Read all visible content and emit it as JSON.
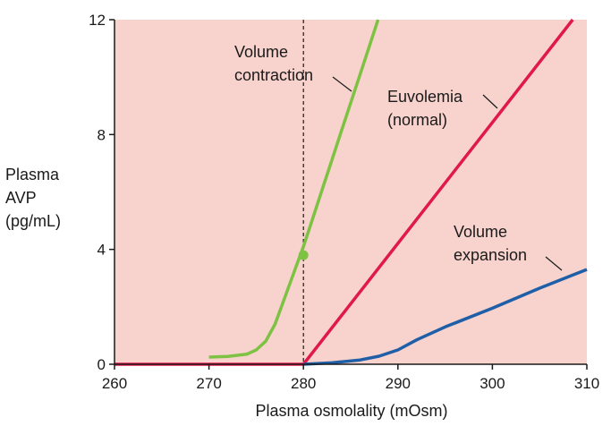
{
  "chart_data": {
    "type": "line",
    "title": "",
    "xlabel": "Plasma osmolality (mOsm)",
    "ylabel_lines": [
      "Plasma",
      "AVP",
      "(pg/mL)"
    ],
    "xlim": [
      260,
      310
    ],
    "ylim": [
      0,
      12
    ],
    "xticks": [
      260,
      270,
      280,
      290,
      300,
      310
    ],
    "yticks": [
      0,
      4,
      8,
      12
    ],
    "grid": false,
    "background_color": "#f8d2cc",
    "threshold_x": 280,
    "series": [
      {
        "name": "Volume contraction",
        "color": "#7dc242",
        "points": [
          [
            270,
            0.25
          ],
          [
            272,
            0.27
          ],
          [
            274,
            0.35
          ],
          [
            275,
            0.5
          ],
          [
            276,
            0.8
          ],
          [
            277,
            1.4
          ],
          [
            278,
            2.3
          ],
          [
            279,
            3.2
          ],
          [
            280,
            4.1
          ],
          [
            281,
            5.1
          ],
          [
            282,
            6.1
          ],
          [
            283,
            7.1
          ],
          [
            284,
            8.1
          ],
          [
            285,
            9.1
          ],
          [
            286,
            10.1
          ],
          [
            287,
            11.1
          ],
          [
            287.9,
            12
          ]
        ]
      },
      {
        "name": "Euvolemia (normal)",
        "color": "#e0194a",
        "points": [
          [
            260,
            0
          ],
          [
            280,
            0
          ],
          [
            308.5,
            12
          ]
        ]
      },
      {
        "name": "Volume expansion",
        "color": "#1f5fa8",
        "points": [
          [
            280,
            0
          ],
          [
            283,
            0.05
          ],
          [
            286,
            0.15
          ],
          [
            288,
            0.28
          ],
          [
            290,
            0.5
          ],
          [
            292,
            0.85
          ],
          [
            295,
            1.3
          ],
          [
            300,
            1.95
          ],
          [
            305,
            2.65
          ],
          [
            310,
            3.3
          ]
        ]
      }
    ],
    "marker": {
      "x": 280,
      "y": 3.8,
      "color": "#7dc242"
    },
    "annotations": [
      {
        "lines": [
          "Volume",
          "contraction"
        ],
        "series": 0
      },
      {
        "lines": [
          "Euvolemia",
          "(normal)"
        ],
        "series": 1
      },
      {
        "lines": [
          "Volume",
          "expansion"
        ],
        "series": 2
      }
    ]
  }
}
